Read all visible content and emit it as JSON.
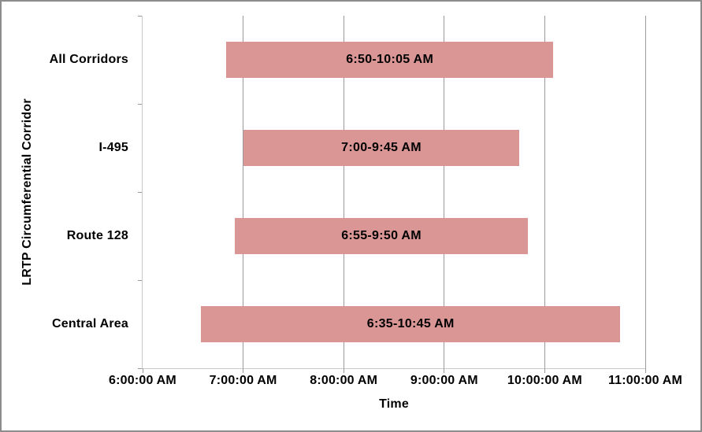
{
  "chart_data": {
    "type": "bar",
    "orientation": "horizontal",
    "title": "",
    "xlabel": "Time",
    "ylabel": "LRTP Circumferential Corridor",
    "xlim": [
      6,
      11
    ],
    "grid": true,
    "legend": null,
    "x_ticks": [
      {
        "hour": 6,
        "label": "6:00:00 AM"
      },
      {
        "hour": 7,
        "label": "7:00:00 AM"
      },
      {
        "hour": 8,
        "label": "8:00:00 AM"
      },
      {
        "hour": 9,
        "label": "9:00:00 AM"
      },
      {
        "hour": 10,
        "label": "10:00:00 AM"
      },
      {
        "hour": 11,
        "label": "11:00:00 AM"
      }
    ],
    "gridline_hours": [
      7,
      8,
      9,
      10,
      11
    ],
    "categories": [
      "All Corridors",
      "I-495",
      "Route 128",
      "Central Area"
    ],
    "bars": [
      {
        "category": "All Corridors",
        "start_hour": 6.8333,
        "end_hour": 10.0833,
        "label": "6:50-10:05 AM"
      },
      {
        "category": "I-495",
        "start_hour": 7.0,
        "end_hour": 9.75,
        "label": "7:00-9:45 AM"
      },
      {
        "category": "Route 128",
        "start_hour": 6.9167,
        "end_hour": 9.8333,
        "label": "6:55-9:50 AM"
      },
      {
        "category": "Central Area",
        "start_hour": 6.5833,
        "end_hour": 10.75,
        "label": "6:35-10:45 AM"
      }
    ]
  },
  "colors": {
    "bar_fill": "#D99694",
    "gridline": "#9A9A9A",
    "axis_line": "#C9C9C9",
    "tick_mark": "#9A9A9A",
    "frame_border": "#8C8C8C",
    "text": "#000000",
    "background": "#FFFFFF"
  }
}
